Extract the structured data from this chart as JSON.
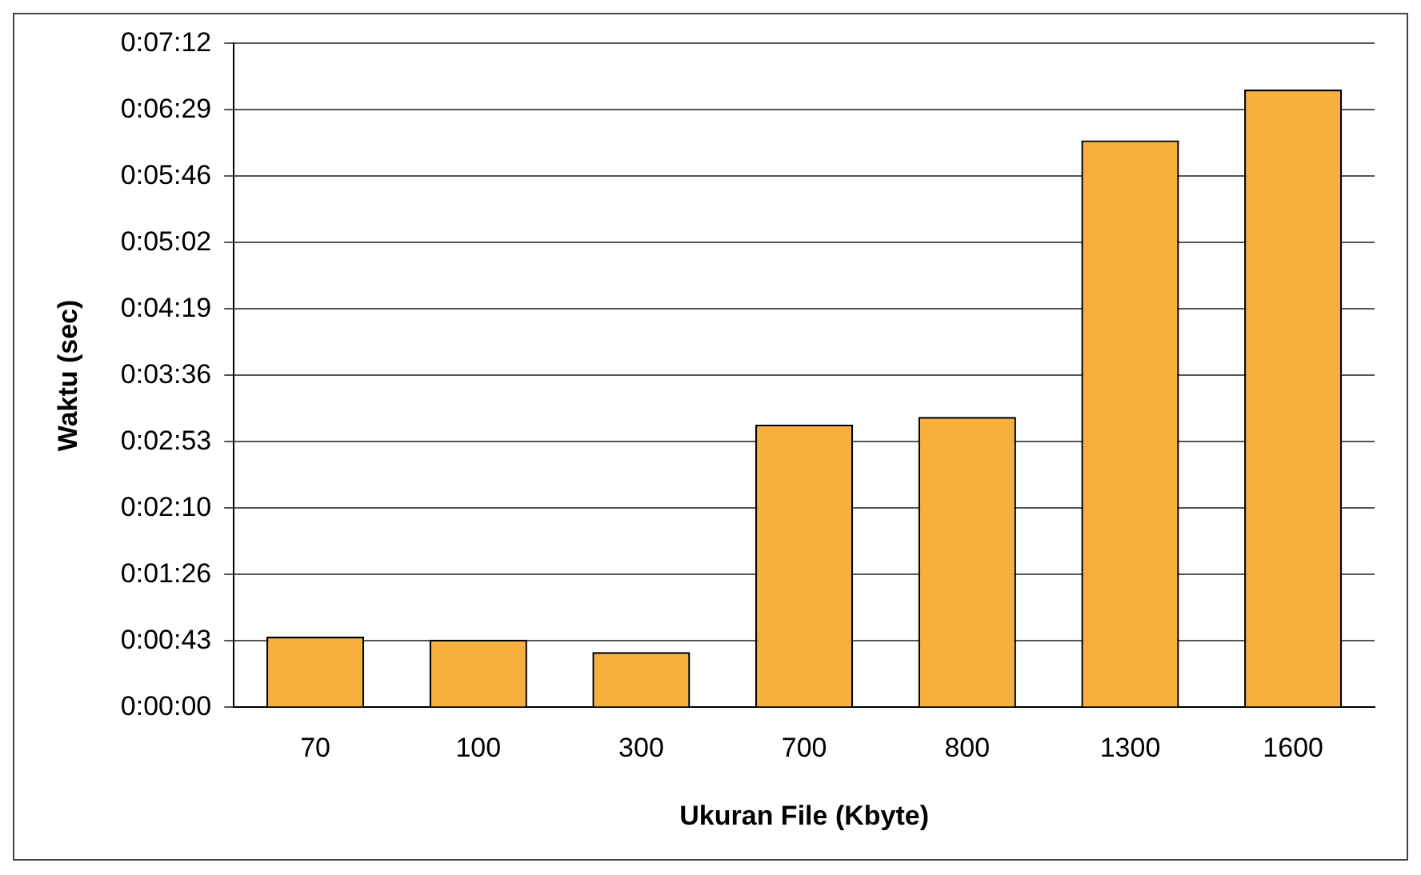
{
  "chart_data": {
    "type": "bar",
    "xlabel": "Ukuran File (Kbyte)",
    "ylabel": "Waktu (sec)",
    "categories": [
      "70",
      "100",
      "300",
      "700",
      "800",
      "1300",
      "1600"
    ],
    "values": [
      46,
      44,
      36,
      184,
      189,
      369,
      402
    ],
    "color": "#f8b03c",
    "ylim": [
      0,
      432
    ],
    "yticks": [
      {
        "value": 0,
        "label": "0:00:00"
      },
      {
        "value": 43.2,
        "label": "0:00:43"
      },
      {
        "value": 86.4,
        "label": "0:01:26"
      },
      {
        "value": 129.6,
        "label": "0:02:10"
      },
      {
        "value": 172.8,
        "label": "0:02:53"
      },
      {
        "value": 216,
        "label": "0:03:36"
      },
      {
        "value": 259.2,
        "label": "0:04:19"
      },
      {
        "value": 302.4,
        "label": "0:05:02"
      },
      {
        "value": 345.6,
        "label": "0:05:46"
      },
      {
        "value": 388.8,
        "label": "0:06:29"
      },
      {
        "value": 432,
        "label": "0:07:12"
      }
    ],
    "grid": "y",
    "legend": false
  }
}
